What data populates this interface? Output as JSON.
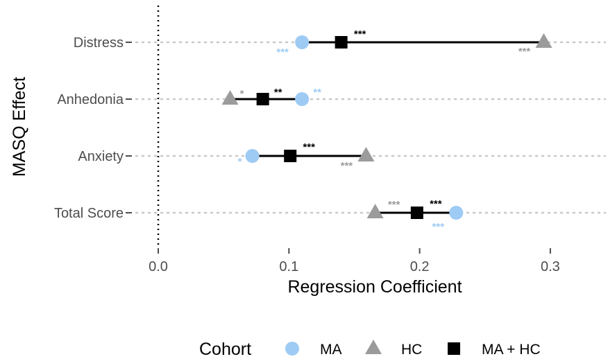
{
  "chart_data": {
    "type": "dot-range",
    "xlabel": "Regression Coefficient",
    "ylabel": "MASQ Effect",
    "xlim": [
      -0.06,
      0.34
    ],
    "x_ticks": [
      0.0,
      0.1,
      0.2,
      0.3
    ],
    "x_tick_labels": [
      "0.0",
      "0.1",
      "0.2",
      "0.3"
    ],
    "reference_line_x": 0,
    "grid": "horizontal dotted",
    "categories": [
      "Distress",
      "Anhedonia",
      "Anxiety",
      "Total Score"
    ],
    "series": [
      {
        "name": "MA",
        "marker": "circle",
        "color": "#9ecbf4",
        "values": [
          0.11,
          0.11,
          0.072,
          0.228
        ],
        "significance": [
          "***",
          "**",
          "*",
          "***"
        ]
      },
      {
        "name": "HC",
        "marker": "triangle",
        "color": "#9b9b9b",
        "values": [
          0.295,
          0.055,
          0.159,
          0.166
        ],
        "significance": [
          "***",
          "*",
          "***",
          "***"
        ]
      },
      {
        "name": "MA + HC",
        "marker": "square",
        "color": "#000000",
        "values": [
          0.14,
          0.08,
          0.101,
          0.198
        ],
        "significance": [
          "***",
          "**",
          "***",
          "***"
        ]
      }
    ],
    "legend": {
      "title": "Cohort",
      "position": "bottom"
    }
  }
}
